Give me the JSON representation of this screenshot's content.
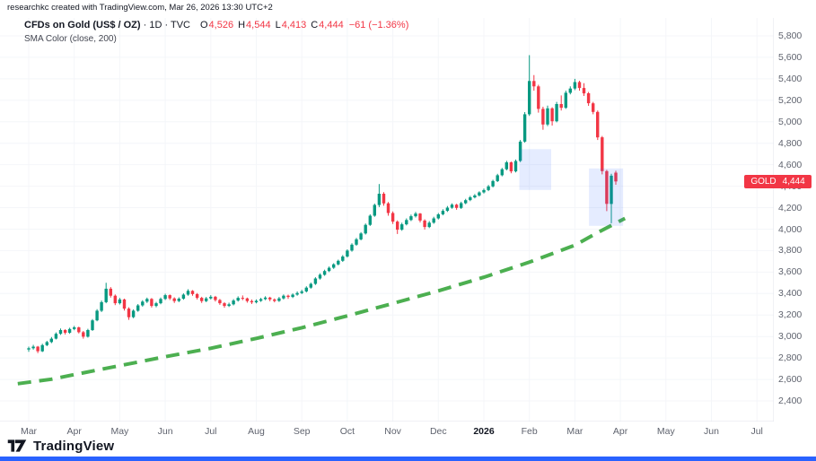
{
  "attribution": "researchkc created with TradingView.com, Mar 26, 2026 13:30 UTC+2",
  "legend": {
    "symbol": "CFDs on Gold (US$ / OZ)",
    "meta": " · 1D · TVC",
    "ohlc": {
      "o_label": "O",
      "o": "4,526",
      "h_label": "H",
      "h": "4,544",
      "l_label": "L",
      "l": "4,413",
      "c_label": "C",
      "c": "4,444",
      "change": "−61 (−1.36%)"
    },
    "indicator": "SMA Color (close, 200)"
  },
  "price_axis": {
    "labels": [
      {
        "v": 5800,
        "t": "5,800"
      },
      {
        "v": 5600,
        "t": "5,600"
      },
      {
        "v": 5400,
        "t": "5,400"
      },
      {
        "v": 5200,
        "t": "5,200"
      },
      {
        "v": 5000,
        "t": "5,000"
      },
      {
        "v": 4800,
        "t": "4,800"
      },
      {
        "v": 4600,
        "t": "4,600"
      },
      {
        "v": 4400,
        "t": "4,400"
      },
      {
        "v": 4200,
        "t": "4,200"
      },
      {
        "v": 4000,
        "t": "4,000"
      },
      {
        "v": 3800,
        "t": "3,800"
      },
      {
        "v": 3600,
        "t": "3,600"
      },
      {
        "v": 3400,
        "t": "3,400"
      },
      {
        "v": 3200,
        "t": "3,200"
      },
      {
        "v": 3000,
        "t": "3,000"
      },
      {
        "v": 2800,
        "t": "2,800"
      },
      {
        "v": 2600,
        "t": "2,600"
      },
      {
        "v": 2400,
        "t": "2,400"
      }
    ],
    "last_price": {
      "symbol": "GOLD",
      "value": "4,444"
    }
  },
  "time_axis": {
    "ticks": [
      {
        "m": 0,
        "t": "Mar"
      },
      {
        "m": 1,
        "t": "Apr"
      },
      {
        "m": 2,
        "t": "May"
      },
      {
        "m": 3,
        "t": "Jun"
      },
      {
        "m": 4,
        "t": "Jul"
      },
      {
        "m": 5,
        "t": "Aug"
      },
      {
        "m": 6,
        "t": "Sep"
      },
      {
        "m": 7,
        "t": "Oct"
      },
      {
        "m": 8,
        "t": "Nov"
      },
      {
        "m": 9,
        "t": "Dec"
      },
      {
        "m": 10,
        "t": "2026",
        "emph": true
      },
      {
        "m": 11,
        "t": "Feb"
      },
      {
        "m": 12,
        "t": "Mar"
      },
      {
        "m": 13,
        "t": "Apr"
      },
      {
        "m": 14,
        "t": "May"
      },
      {
        "m": 15,
        "t": "Jun"
      },
      {
        "m": 16,
        "t": "Jul"
      }
    ]
  },
  "footer": {
    "brand": "TradingView"
  },
  "colors": {
    "up": "#089981",
    "down": "#f23645",
    "sma": "#4caf50",
    "grid": "#f4f6f9",
    "separator": "#e0e3eb",
    "axis_text": "#5f636e",
    "badge_bg": "#f23645",
    "accent_bar": "#2962ff",
    "highlight": "rgba(41,98,255,0.12)",
    "text_dark": "#131722"
  },
  "chart_data": {
    "type": "candlestick",
    "title": "CFDs on Gold (US$ / OZ) · 1D · TVC",
    "ohlc_display": {
      "open": 4526,
      "high": 4544,
      "low": 4413,
      "close": 4444,
      "change": -61,
      "change_pct": -1.36
    },
    "last_price": 4444,
    "y_range_visible": [
      2200,
      5970
    ],
    "y_tick_step": 200,
    "x_unit": "months from Mar 2025 (ticks Mar 2025 → Jul 2026)",
    "bars_per_month": 10,
    "legend_position": "top-left",
    "grid": "faint",
    "candles_ohlc": [
      [
        2878,
        2905,
        2858,
        2890
      ],
      [
        2890,
        2922,
        2878,
        2905
      ],
      [
        2905,
        2912,
        2845,
        2862
      ],
      [
        2862,
        2932,
        2855,
        2920
      ],
      [
        2920,
        2960,
        2910,
        2948
      ],
      [
        2948,
        2995,
        2938,
        2980
      ],
      [
        2980,
        3038,
        2972,
        3025
      ],
      [
        3025,
        3075,
        3015,
        3060
      ],
      [
        3060,
        3068,
        3018,
        3035
      ],
      [
        3035,
        3082,
        3025,
        3070
      ],
      [
        3070,
        3098,
        3058,
        3085
      ],
      [
        3085,
        3092,
        3028,
        3040
      ],
      [
        3040,
        3052,
        2980,
        2998
      ],
      [
        2998,
        3072,
        2990,
        3060
      ],
      [
        3060,
        3162,
        3052,
        3150
      ],
      [
        3150,
        3255,
        3142,
        3240
      ],
      [
        3240,
        3335,
        3228,
        3320
      ],
      [
        3320,
        3500,
        3310,
        3445
      ],
      [
        3445,
        3460,
        3362,
        3380
      ],
      [
        3380,
        3392,
        3292,
        3310
      ],
      [
        3310,
        3360,
        3298,
        3345
      ],
      [
        3345,
        3352,
        3242,
        3260
      ],
      [
        3260,
        3272,
        3155,
        3180
      ],
      [
        3180,
        3252,
        3170,
        3240
      ],
      [
        3240,
        3302,
        3230,
        3290
      ],
      [
        3290,
        3338,
        3278,
        3325
      ],
      [
        3325,
        3362,
        3312,
        3350
      ],
      [
        3350,
        3358,
        3270,
        3285
      ],
      [
        3285,
        3322,
        3272,
        3310
      ],
      [
        3310,
        3362,
        3300,
        3350
      ],
      [
        3350,
        3398,
        3340,
        3385
      ],
      [
        3385,
        3392,
        3340,
        3355
      ],
      [
        3355,
        3365,
        3312,
        3330
      ],
      [
        3330,
        3365,
        3320,
        3352
      ],
      [
        3352,
        3402,
        3342,
        3390
      ],
      [
        3390,
        3440,
        3380,
        3425
      ],
      [
        3425,
        3432,
        3380,
        3395
      ],
      [
        3395,
        3405,
        3345,
        3360
      ],
      [
        3360,
        3370,
        3312,
        3330
      ],
      [
        3330,
        3368,
        3320,
        3355
      ],
      [
        3355,
        3385,
        3345,
        3370
      ],
      [
        3370,
        3378,
        3326,
        3340
      ],
      [
        3340,
        3350,
        3295,
        3310
      ],
      [
        3310,
        3320,
        3268,
        3285
      ],
      [
        3285,
        3315,
        3275,
        3300
      ],
      [
        3300,
        3348,
        3290,
        3335
      ],
      [
        3335,
        3374,
        3325,
        3360
      ],
      [
        3360,
        3382,
        3338,
        3355
      ],
      [
        3355,
        3362,
        3315,
        3330
      ],
      [
        3330,
        3345,
        3302,
        3318
      ],
      [
        3318,
        3345,
        3308,
        3332
      ],
      [
        3332,
        3360,
        3322,
        3348
      ],
      [
        3348,
        3375,
        3338,
        3362
      ],
      [
        3362,
        3370,
        3328,
        3345
      ],
      [
        3345,
        3355,
        3318,
        3332
      ],
      [
        3332,
        3368,
        3322,
        3355
      ],
      [
        3355,
        3392,
        3345,
        3380
      ],
      [
        3380,
        3390,
        3350,
        3368
      ],
      [
        3368,
        3402,
        3358,
        3390
      ],
      [
        3390,
        3420,
        3380,
        3405
      ],
      [
        3405,
        3435,
        3395,
        3420
      ],
      [
        3420,
        3468,
        3410,
        3455
      ],
      [
        3455,
        3502,
        3445,
        3490
      ],
      [
        3490,
        3552,
        3480,
        3540
      ],
      [
        3540,
        3588,
        3530,
        3575
      ],
      [
        3575,
        3622,
        3565,
        3610
      ],
      [
        3610,
        3652,
        3600,
        3640
      ],
      [
        3640,
        3682,
        3630,
        3672
      ],
      [
        3672,
        3716,
        3662,
        3705
      ],
      [
        3705,
        3758,
        3695,
        3745
      ],
      [
        3745,
        3812,
        3735,
        3800
      ],
      [
        3800,
        3868,
        3790,
        3855
      ],
      [
        3855,
        3918,
        3845,
        3905
      ],
      [
        3905,
        3972,
        3895,
        3960
      ],
      [
        3960,
        4052,
        3950,
        4040
      ],
      [
        4040,
        4138,
        4030,
        4125
      ],
      [
        4125,
        4238,
        4115,
        4225
      ],
      [
        4225,
        4420,
        4205,
        4330
      ],
      [
        4330,
        4345,
        4218,
        4240
      ],
      [
        4240,
        4252,
        4125,
        4150
      ],
      [
        4150,
        4165,
        4048,
        4070
      ],
      [
        4070,
        4082,
        3955,
        3995
      ],
      [
        3995,
        4060,
        3985,
        4045
      ],
      [
        4045,
        4100,
        4035,
        4085
      ],
      [
        4085,
        4135,
        4075,
        4120
      ],
      [
        4120,
        4160,
        4108,
        4145
      ],
      [
        4145,
        4150,
        4062,
        4080
      ],
      [
        4080,
        4092,
        3996,
        4020
      ],
      [
        4020,
        4075,
        4010,
        4060
      ],
      [
        4060,
        4115,
        4050,
        4100
      ],
      [
        4100,
        4150,
        4090,
        4138
      ],
      [
        4138,
        4185,
        4128,
        4170
      ],
      [
        4170,
        4215,
        4160,
        4200
      ],
      [
        4200,
        4240,
        4190,
        4228
      ],
      [
        4228,
        4236,
        4180,
        4198
      ],
      [
        4198,
        4255,
        4188,
        4242
      ],
      [
        4242,
        4282,
        4232,
        4270
      ],
      [
        4270,
        4310,
        4260,
        4296
      ],
      [
        4296,
        4326,
        4286,
        4314
      ],
      [
        4314,
        4352,
        4304,
        4342
      ],
      [
        4342,
        4378,
        4332,
        4364
      ],
      [
        4364,
        4412,
        4354,
        4398
      ],
      [
        4398,
        4460,
        4388,
        4448
      ],
      [
        4448,
        4515,
        4438,
        4502
      ],
      [
        4502,
        4570,
        4492,
        4558
      ],
      [
        4558,
        4636,
        4548,
        4622
      ],
      [
        4622,
        4630,
        4520,
        4538
      ],
      [
        4538,
        4648,
        4528,
        4635
      ],
      [
        4635,
        4830,
        4625,
        4815
      ],
      [
        4815,
        5090,
        4805,
        5070
      ],
      [
        5070,
        5620,
        5055,
        5380
      ],
      [
        5380,
        5435,
        5290,
        5330
      ],
      [
        5330,
        5345,
        5085,
        5120
      ],
      [
        5120,
        5140,
        4925,
        4975
      ],
      [
        4975,
        5150,
        4960,
        5125
      ],
      [
        5125,
        5135,
        4965,
        5005
      ],
      [
        5005,
        5185,
        4995,
        5165
      ],
      [
        5165,
        5245,
        5105,
        5130
      ],
      [
        5130,
        5290,
        5120,
        5270
      ],
      [
        5270,
        5330,
        5255,
        5310
      ],
      [
        5310,
        5400,
        5295,
        5370
      ],
      [
        5370,
        5382,
        5290,
        5315
      ],
      [
        5315,
        5360,
        5240,
        5265
      ],
      [
        5265,
        5278,
        5148,
        5172
      ],
      [
        5172,
        5185,
        5070,
        5092
      ],
      [
        5092,
        5105,
        4830,
        4855
      ],
      [
        4855,
        4868,
        4510,
        4540
      ],
      [
        4540,
        4552,
        4168,
        4235
      ],
      [
        4235,
        4515,
        4055,
        4498
      ],
      [
        4526,
        4544,
        4413,
        4444
      ]
    ],
    "sma_200": [
      [
        -0.24,
        2560
      ],
      [
        0.5,
        2602
      ],
      [
        1,
        2645
      ],
      [
        2,
        2728
      ],
      [
        3,
        2812
      ],
      [
        4,
        2890
      ],
      [
        5,
        2982
      ],
      [
        6,
        3082
      ],
      [
        7,
        3192
      ],
      [
        8,
        3308
      ],
      [
        9,
        3425
      ],
      [
        10,
        3552
      ],
      [
        11,
        3692
      ],
      [
        12,
        3850
      ],
      [
        12.5,
        3968
      ],
      [
        13.1,
        4100
      ]
    ],
    "highlight_boxes": [
      {
        "m1": 10.78,
        "m2": 11.48,
        "p1": 4365,
        "p2": 4745
      },
      {
        "m1": 12.31,
        "m2": 13.06,
        "p1": 4030,
        "p2": 4565
      }
    ]
  }
}
